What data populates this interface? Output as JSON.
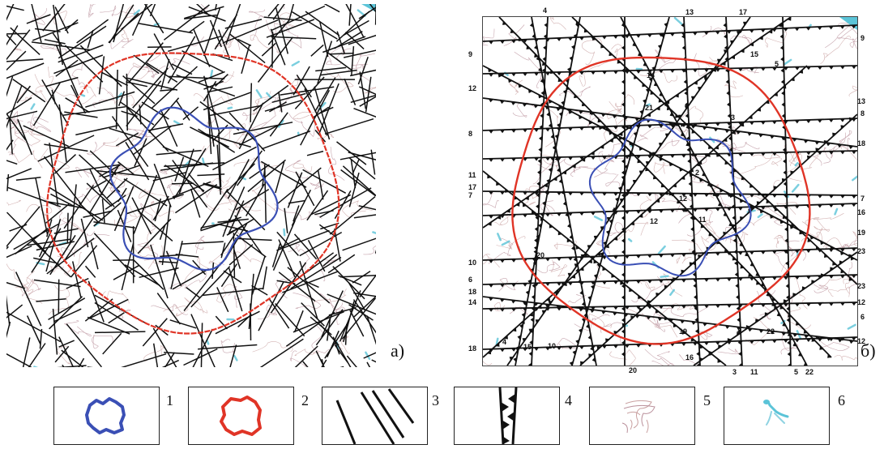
{
  "panels": {
    "a": {
      "letter": "a)"
    },
    "b": {
      "letter": "б)",
      "top_labels": [
        "4",
        "13",
        "17"
      ],
      "left_labels": [
        "9",
        "12",
        "8",
        "11",
        "17",
        "7",
        "10",
        "6",
        "18",
        "14",
        "18"
      ],
      "right_labels": [
        "9",
        "13",
        "8",
        "18",
        "7",
        "16",
        "19",
        "23",
        "23",
        "12",
        "6",
        "12"
      ],
      "bottom_labels": [
        "20",
        "3",
        "11",
        "5",
        "22"
      ],
      "interior_labels": [
        "15",
        "5",
        "14",
        "21",
        "3",
        "2",
        "12",
        "12",
        "11",
        "20",
        "4",
        "15",
        "10",
        "19",
        "16",
        "22"
      ]
    }
  },
  "legend": {
    "numbers": [
      "1",
      "2",
      "3",
      "4",
      "5",
      "6"
    ]
  },
  "colors": {
    "blue_contour": "#3a4fb5",
    "red_contour": "#e03426",
    "lineaments": "#111111",
    "topo": "#c9a0a0",
    "water": "#5bc4d8"
  }
}
